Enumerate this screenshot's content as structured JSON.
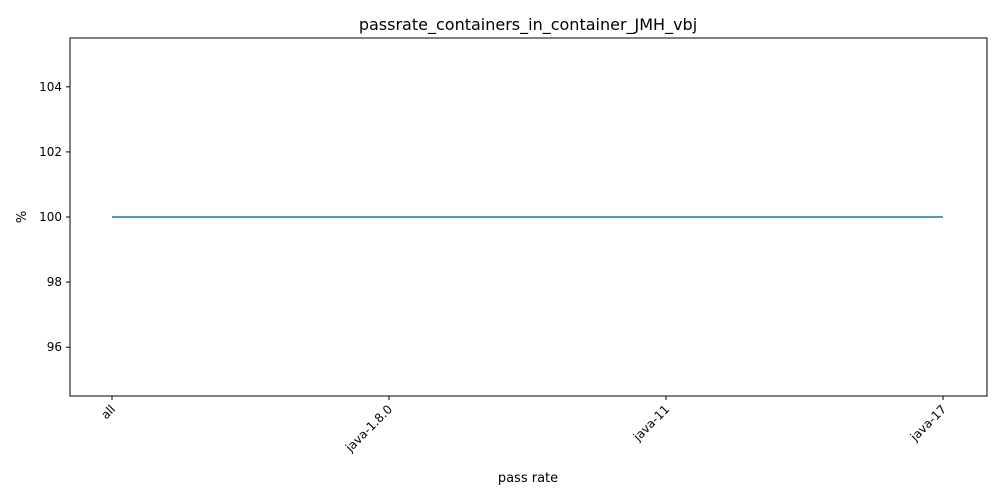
{
  "chart_data": {
    "type": "line",
    "title": "passrate_containers_in_container_JMH_vbj",
    "xlabel": "pass rate",
    "ylabel": "%",
    "categories": [
      "all",
      "java-1.8.0",
      "java-11",
      "java-17"
    ],
    "series": [
      {
        "values": [
          100,
          100,
          100,
          100
        ],
        "color": "#1f77b4"
      }
    ],
    "ylim": [
      94.5,
      105.5
    ],
    "yticks": [
      96,
      98,
      100,
      102,
      104
    ],
    "grid": false,
    "legend": "none"
  }
}
